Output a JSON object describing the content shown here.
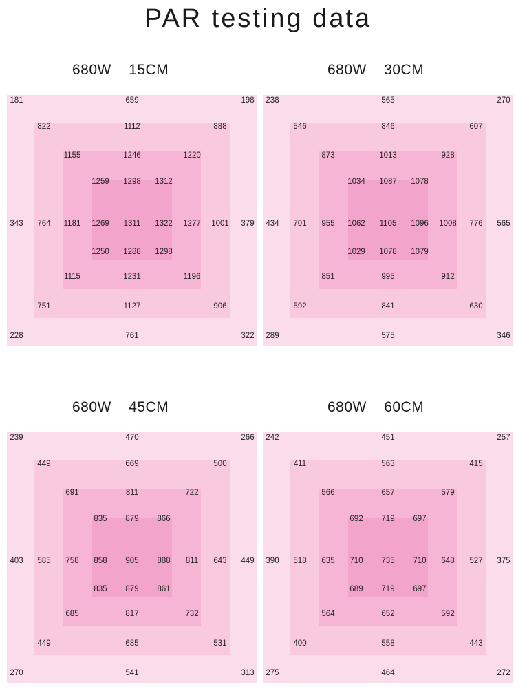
{
  "title": "PAR testing data",
  "colors": {
    "ring1": "#fadcea",
    "ring2": "#f8c9df",
    "ring3": "#f6b5d4",
    "ring4": "#f3a4cb"
  },
  "chart_data": [
    {
      "type": "heatmap",
      "title": "680W    15CM",
      "ring1": {
        "tl": "181",
        "t": "659",
        "tr": "198",
        "l": "343",
        "r": "379",
        "bl": "228",
        "b": "761",
        "br": "322"
      },
      "ring2": {
        "tl": "822",
        "t": "1112",
        "tr": "888",
        "l": "764",
        "r": "1001",
        "bl": "751",
        "b": "1127",
        "br": "906"
      },
      "ring3": {
        "tl": "1155",
        "t": "1246",
        "tr": "1220",
        "l": "1181",
        "r": "1277",
        "bl": "1115",
        "b": "1231",
        "br": "1196"
      },
      "ring4": {
        "tl": "1259",
        "t": "1298",
        "tr": "1312",
        "l": "1269",
        "c": "1311",
        "r": "1322",
        "bl": "1250",
        "b": "1288",
        "br": "1298"
      }
    },
    {
      "type": "heatmap",
      "title": "680W    30CM",
      "ring1": {
        "tl": "238",
        "t": "565",
        "tr": "270",
        "l": "434",
        "r": "565",
        "bl": "289",
        "b": "575",
        "br": "346"
      },
      "ring2": {
        "tl": "546",
        "t": "846",
        "tr": "607",
        "l": "701",
        "r": "776",
        "bl": "592",
        "b": "841",
        "br": "630"
      },
      "ring3": {
        "tl": "873",
        "t": "1013",
        "tr": "928",
        "l": "955",
        "r": "1008",
        "bl": "851",
        "b": "995",
        "br": "912"
      },
      "ring4": {
        "tl": "1034",
        "t": "1087",
        "tr": "1078",
        "l": "1062",
        "c": "1105",
        "r": "1096",
        "bl": "1029",
        "b": "1078",
        "br": "1079"
      }
    },
    {
      "type": "heatmap",
      "title": "680W    45CM",
      "ring1": {
        "tl": "239",
        "t": "470",
        "tr": "266",
        "l": "403",
        "r": "449",
        "bl": "270",
        "b": "541",
        "br": "313"
      },
      "ring2": {
        "tl": "449",
        "t": "669",
        "tr": "500",
        "l": "585",
        "r": "643",
        "bl": "449",
        "b": "685",
        "br": "531"
      },
      "ring3": {
        "tl": "691",
        "t": "811",
        "tr": "722",
        "l": "758",
        "r": "811",
        "bl": "685",
        "b": "817",
        "br": "732"
      },
      "ring4": {
        "tl": "835",
        "t": "879",
        "tr": "866",
        "l": "858",
        "c": "905",
        "r": "888",
        "bl": "835",
        "b": "879",
        "br": "861"
      }
    },
    {
      "type": "heatmap",
      "title": "680W    60CM",
      "ring1": {
        "tl": "242",
        "t": "451",
        "tr": "257",
        "l": "390",
        "r": "375",
        "bl": "275",
        "b": "464",
        "br": "272"
      },
      "ring2": {
        "tl": "411",
        "t": "563",
        "tr": "415",
        "l": "518",
        "r": "527",
        "bl": "400",
        "b": "558",
        "br": "443"
      },
      "ring3": {
        "tl": "566",
        "t": "657",
        "tr": "579",
        "l": "635",
        "r": "648",
        "bl": "564",
        "b": "652",
        "br": "592"
      },
      "ring4": {
        "tl": "692",
        "t": "719",
        "tr": "697",
        "l": "710",
        "c": "735",
        "r": "710",
        "bl": "689",
        "b": "719",
        "br": "697"
      }
    }
  ]
}
